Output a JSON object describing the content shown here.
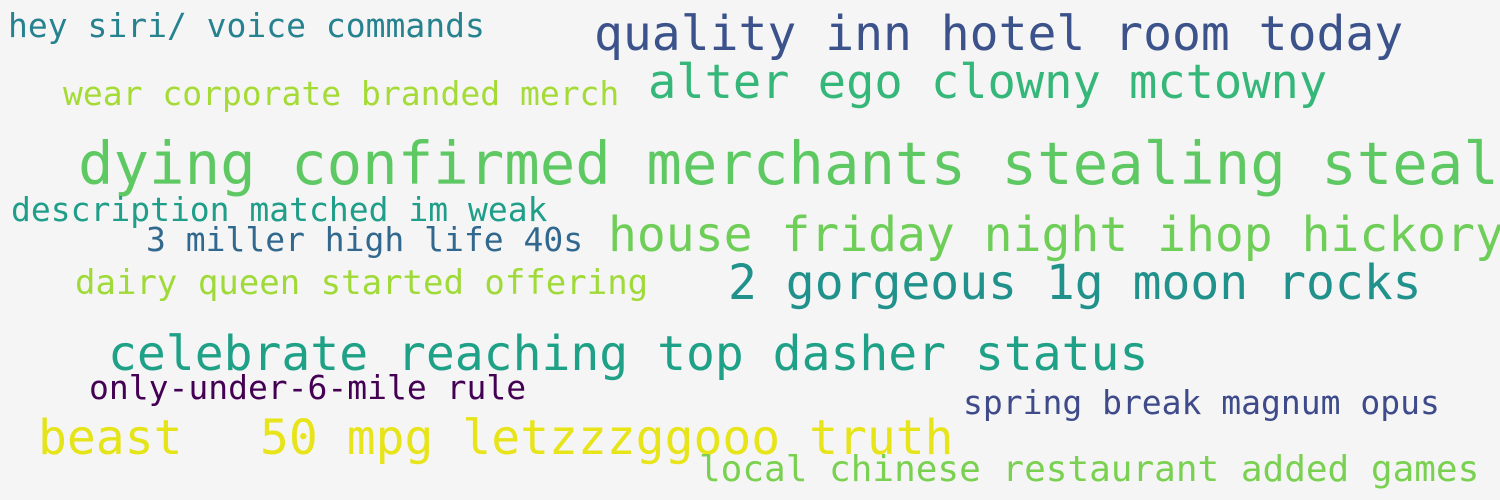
{
  "cloud": {
    "background": "#f5f5f5",
    "phrases": [
      {
        "text": "quality inn hotel room today",
        "color": "#3b528b"
      },
      {
        "text": "hey siri/ voice commands",
        "color": "#26828e"
      },
      {
        "text": "wear corporate branded merch",
        "color": "#a5db36"
      },
      {
        "text": "alter ego clowny mctowny",
        "color": "#35b779"
      },
      {
        "text": "dying confirmed merchants stealing steals",
        "color": "#5ec962"
      },
      {
        "text": "description matched im weak",
        "color": "#1f9e89"
      },
      {
        "text": "3 miller high life 40s",
        "color": "#31688e"
      },
      {
        "text": "house friday night ihop hickory",
        "color": "#6ece58"
      },
      {
        "text": "dairy queen started offering",
        "color": "#a0da39"
      },
      {
        "text": "2 gorgeous 1g moon rocks",
        "color": "#21918c"
      },
      {
        "text": "celebrate reaching top dasher status",
        "color": "#1fa187"
      },
      {
        "text": "only-under-6-mile rule",
        "color": "#440154"
      },
      {
        "text": "spring break magnum opus",
        "color": "#3e4a89"
      },
      {
        "text": "beast",
        "color": "#e5e419"
      },
      {
        "text": "50 mpg letzzzggooo truth",
        "color": "#e7e419"
      },
      {
        "text": "local chinese restaurant added games",
        "color": "#7ad151"
      }
    ]
  }
}
